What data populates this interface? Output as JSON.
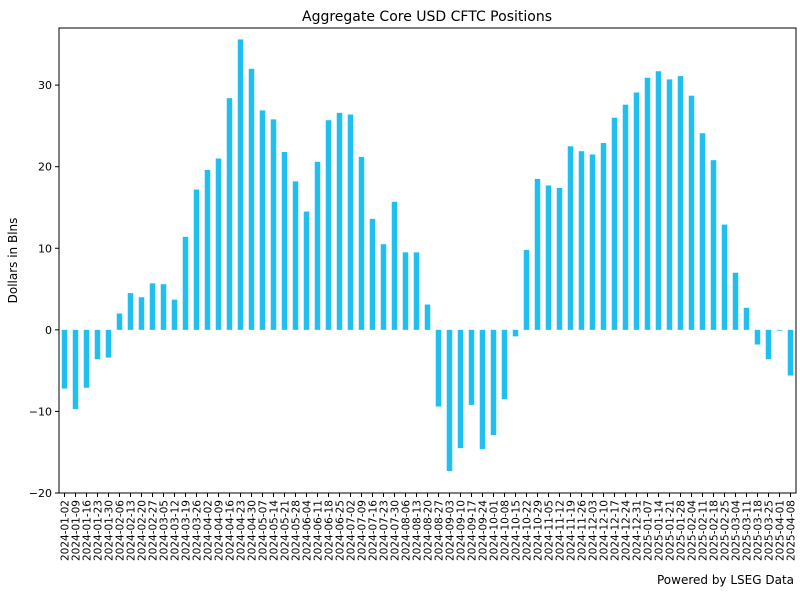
{
  "chart_data": {
    "type": "bar",
    "title": "Aggregate Core USD CFTC Positions",
    "xlabel": "",
    "ylabel": "Dollars in Blns",
    "ylim": [
      -20,
      37
    ],
    "yticks": [
      -20,
      -10,
      0,
      10,
      20,
      30
    ],
    "grid": false,
    "legend": "none",
    "bar_color": "#1fc0f0",
    "categories": [
      "2024-01-02",
      "2024-01-09",
      "2024-01-16",
      "2024-01-23",
      "2024-01-30",
      "2024-02-06",
      "2024-02-13",
      "2024-02-20",
      "2024-02-27",
      "2024-03-05",
      "2024-03-12",
      "2024-03-19",
      "2024-03-26",
      "2024-04-02",
      "2024-04-09",
      "2024-04-16",
      "2024-04-23",
      "2024-04-30",
      "2024-05-07",
      "2024-05-14",
      "2024-05-21",
      "2024-05-28",
      "2024-06-04",
      "2024-06-11",
      "2024-06-18",
      "2024-06-25",
      "2024-07-02",
      "2024-07-09",
      "2024-07-16",
      "2024-07-23",
      "2024-07-30",
      "2024-08-06",
      "2024-08-13",
      "2024-08-20",
      "2024-08-27",
      "2024-09-03",
      "2024-09-10",
      "2024-09-17",
      "2024-09-24",
      "2024-10-01",
      "2024-10-08",
      "2024-10-15",
      "2024-10-22",
      "2024-10-29",
      "2024-11-05",
      "2024-11-12",
      "2024-11-19",
      "2024-11-26",
      "2024-12-03",
      "2024-12-10",
      "2024-12-17",
      "2024-12-24",
      "2024-12-31",
      "2025-01-07",
      "2025-01-14",
      "2025-01-21",
      "2025-01-28",
      "2025-02-04",
      "2025-02-11",
      "2025-02-18",
      "2025-02-25",
      "2025-03-04",
      "2025-03-11",
      "2025-03-18",
      "2025-03-25",
      "2025-04-01",
      "2025-04-08"
    ],
    "values": [
      -7.2,
      -9.7,
      -7.1,
      -3.6,
      -3.4,
      2.0,
      4.5,
      4.0,
      5.7,
      5.6,
      3.7,
      11.4,
      17.2,
      19.6,
      21.0,
      28.4,
      35.6,
      32.0,
      26.9,
      25.8,
      21.8,
      18.2,
      14.5,
      20.6,
      25.7,
      26.6,
      26.4,
      21.2,
      13.6,
      10.5,
      15.7,
      9.5,
      9.5,
      3.1,
      -9.4,
      -17.3,
      -14.5,
      -9.2,
      -14.6,
      -12.9,
      -8.5,
      -0.8,
      9.8,
      18.5,
      17.7,
      17.4,
      22.5,
      21.9,
      21.5,
      22.9,
      26.0,
      27.6,
      29.1,
      30.9,
      31.7,
      30.7,
      31.1,
      28.7,
      24.1,
      20.8,
      12.9,
      7.0,
      2.7,
      -1.8,
      -3.6,
      -0.1,
      -5.6
    ],
    "footer": "Powered by LSEG Data"
  }
}
